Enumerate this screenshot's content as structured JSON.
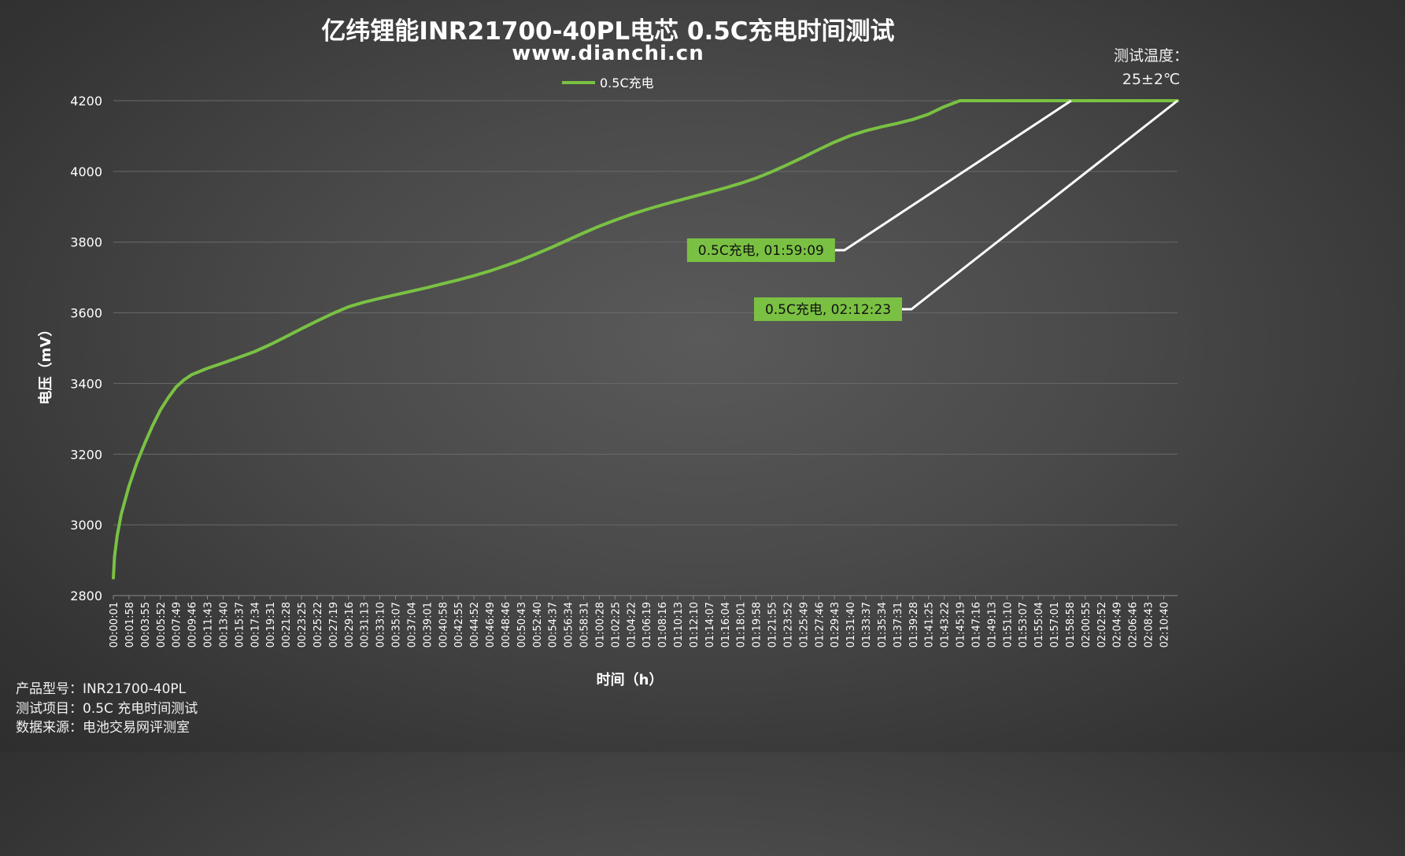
{
  "title": "亿纬锂能INR21700-40PL电芯 0.5C充电时间测试",
  "subtitle": "www.dianchi.cn",
  "temperature": {
    "line1": "测试温度：",
    "line2": "25±2℃"
  },
  "footer": {
    "model": "产品型号：INR21700-40PL",
    "test_item": "测试项目：0.5C 充电时间测试",
    "source": "数据来源：电池交易网评测室"
  },
  "colors": {
    "series": "#7ac143",
    "label_bg": "#7ac143",
    "leader": "#ffffff",
    "grid": "#6a6a6a"
  },
  "chart_data": {
    "type": "line",
    "title": "亿纬锂能INR21700-40PL电芯 0.5C充电时间测试",
    "xlabel": "时间（h）",
    "ylabel": "电压（mV）",
    "ylim": [
      2800,
      4200
    ],
    "yticks": [
      2800,
      3000,
      3200,
      3400,
      3600,
      3800,
      4000,
      4200
    ],
    "grid": true,
    "legend": "top-center",
    "x_tick_labels": [
      "00:00:01",
      "00:01:58",
      "00:03:55",
      "00:05:52",
      "00:07:49",
      "00:09:46",
      "00:11:43",
      "00:13:40",
      "00:15:37",
      "00:17:34",
      "00:19:31",
      "00:21:28",
      "00:23:25",
      "00:25:22",
      "00:27:19",
      "00:29:16",
      "00:31:13",
      "00:33:10",
      "00:35:07",
      "00:37:04",
      "00:39:01",
      "00:40:58",
      "00:42:55",
      "00:44:52",
      "00:46:49",
      "00:48:46",
      "00:50:43",
      "00:52:40",
      "00:54:37",
      "00:56:34",
      "00:58:31",
      "01:00:28",
      "01:02:25",
      "01:04:22",
      "01:06:19",
      "01:08:16",
      "01:10:13",
      "01:12:10",
      "01:14:07",
      "01:16:04",
      "01:18:01",
      "01:19:58",
      "01:21:55",
      "01:23:52",
      "01:25:49",
      "01:27:46",
      "01:29:43",
      "01:31:40",
      "01:33:37",
      "01:35:34",
      "01:37:31",
      "01:39:28",
      "01:41:25",
      "01:43:22",
      "01:45:19",
      "01:47:16",
      "01:49:13",
      "01:51:10",
      "01:53:07",
      "01:55:04",
      "01:57:01",
      "01:58:58",
      "02:00:55",
      "02:02:52",
      "02:04:49",
      "02:06:46",
      "02:08:43",
      "02:10:40"
    ],
    "series": [
      {
        "name": "0.5C充电",
        "x": [
          "00:00:01",
          "00:00:10",
          "00:00:30",
          "00:01:00",
          "00:01:58",
          "00:02:56",
          "00:03:55",
          "00:04:53",
          "00:05:52",
          "00:06:51",
          "00:07:49",
          "00:08:48",
          "00:09:46",
          "00:11:43",
          "00:13:40",
          "00:15:37",
          "00:17:34",
          "00:19:31",
          "00:21:28",
          "00:23:25",
          "00:25:22",
          "00:27:19",
          "00:29:16",
          "00:31:13",
          "00:33:10",
          "00:35:07",
          "00:37:04",
          "00:39:01",
          "00:40:58",
          "00:42:55",
          "00:44:52",
          "00:46:49",
          "00:48:46",
          "00:50:43",
          "00:52:40",
          "00:54:37",
          "00:56:34",
          "00:58:31",
          "01:00:28",
          "01:02:25",
          "01:04:22",
          "01:06:19",
          "01:08:16",
          "01:10:13",
          "01:12:10",
          "01:14:07",
          "01:16:04",
          "01:18:01",
          "01:19:58",
          "01:21:55",
          "01:23:52",
          "01:25:49",
          "01:27:46",
          "01:29:43",
          "01:31:40",
          "01:33:37",
          "01:35:34",
          "01:37:31",
          "01:39:28",
          "01:41:25",
          "01:43:22",
          "01:45:19",
          "01:47:16",
          "01:49:13",
          "01:51:10",
          "01:53:07",
          "01:55:04",
          "01:57:01",
          "01:58:00",
          "01:59:09",
          "02:00:55",
          "02:02:52",
          "02:04:49",
          "02:06:46",
          "02:08:43",
          "02:10:40",
          "02:12:23"
        ],
        "y": [
          2850,
          2910,
          2970,
          3030,
          3110,
          3175,
          3230,
          3280,
          3325,
          3360,
          3390,
          3410,
          3425,
          3443,
          3458,
          3474,
          3490,
          3510,
          3532,
          3555,
          3577,
          3598,
          3617,
          3630,
          3641,
          3651,
          3661,
          3671,
          3682,
          3693,
          3705,
          3718,
          3733,
          3749,
          3767,
          3786,
          3806,
          3826,
          3845,
          3862,
          3878,
          3892,
          3905,
          3917,
          3929,
          3941,
          3953,
          3966,
          3981,
          3999,
          4019,
          4040,
          4062,
          4083,
          4101,
          4115,
          4126,
          4136,
          4147,
          4162,
          4183,
          4200,
          4200,
          4200,
          4200,
          4200,
          4200,
          4200,
          4200,
          4200,
          4200,
          4200,
          4200,
          4200,
          4200,
          4200,
          4200
        ]
      }
    ],
    "annotations": [
      {
        "text": "0.5C充电, 01:59:09",
        "x": "01:59:09",
        "y": 4200
      },
      {
        "text": "0.5C充电, 02:12:23",
        "x": "02:12:23",
        "y": 4200
      }
    ]
  }
}
